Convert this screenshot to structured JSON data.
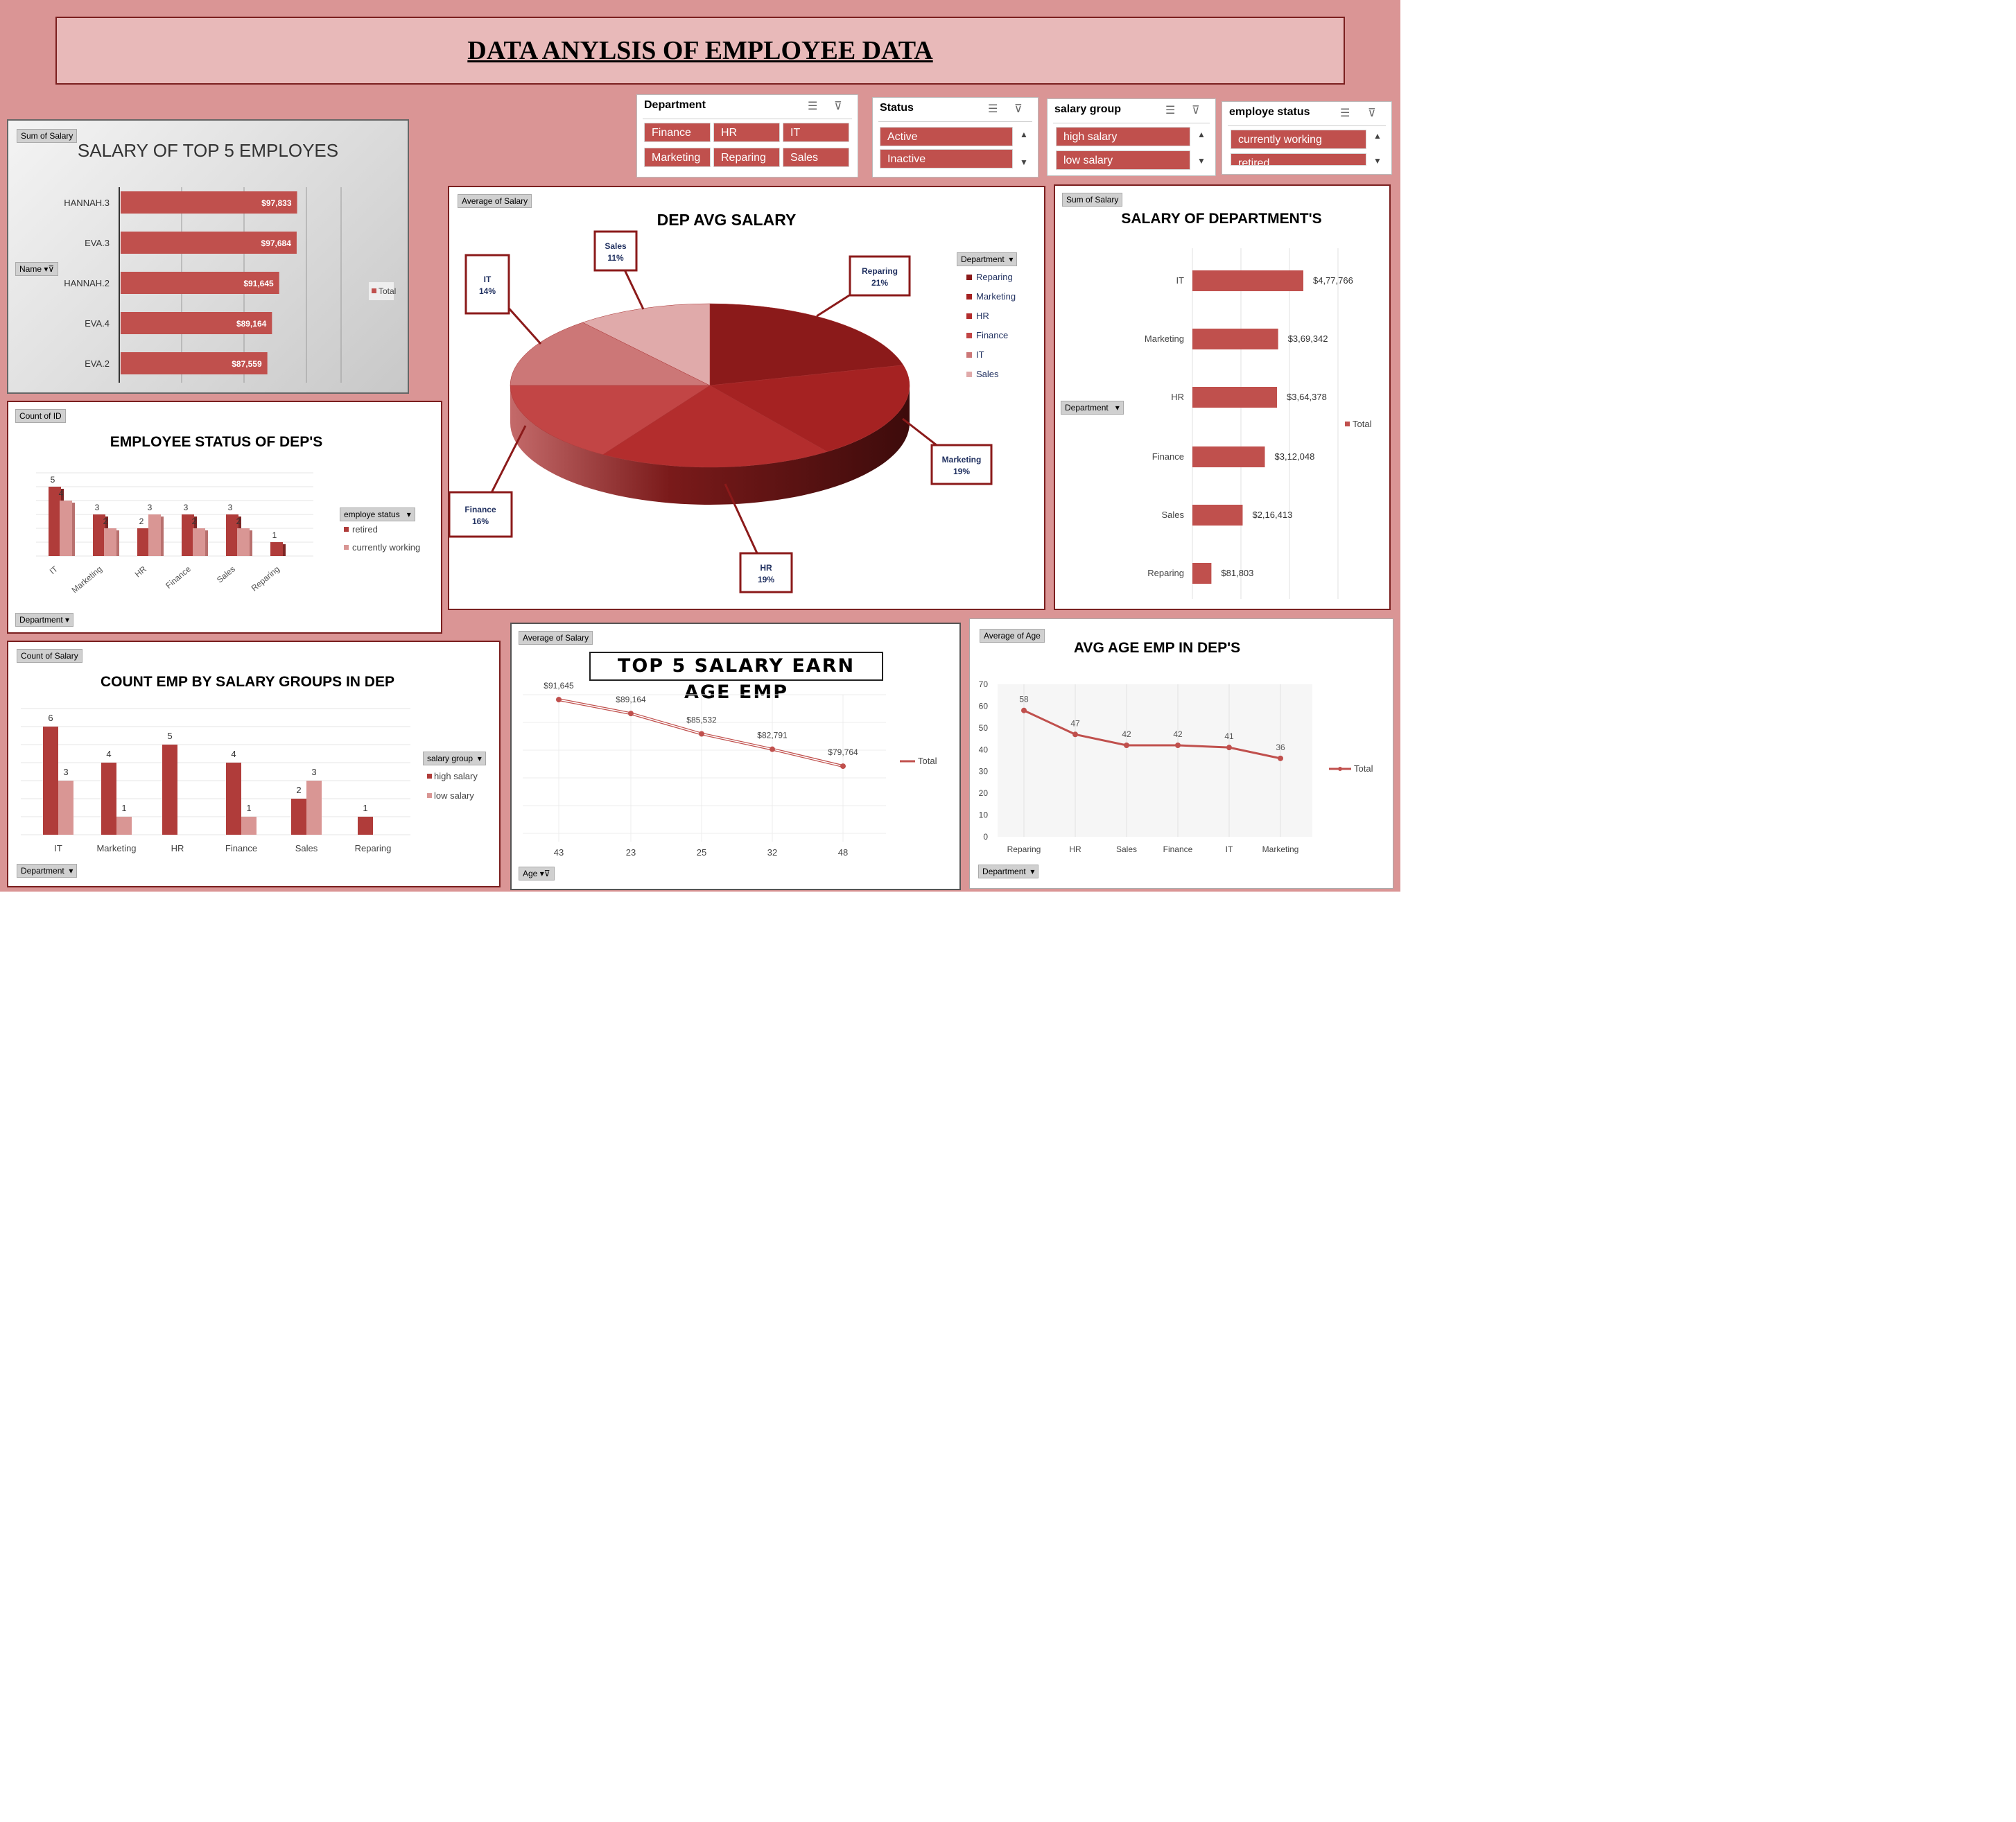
{
  "title": "DATA ANYLSIS OF EMPLOYEE DATA",
  "colors": {
    "dark": "#c0504d",
    "light": "#d99694",
    "line": "#c0504d"
  },
  "slicers": [
    {
      "header": "Department",
      "items": [
        "Finance",
        "HR",
        "IT",
        "Marketing",
        "Reparing",
        "Sales"
      ]
    },
    {
      "header": "Status",
      "items": [
        "Active",
        "Inactive"
      ]
    },
    {
      "header": "salary group",
      "items": [
        "high salary",
        "low salary"
      ]
    },
    {
      "header": "employe status",
      "items": [
        "currently working",
        "retired"
      ]
    }
  ],
  "charts": {
    "top5": {
      "field": "Sum of Salary",
      "axis_field": "Name",
      "title": "SALARY OF TOP 5 EMPLOYES",
      "legend": "Total"
    },
    "pie": {
      "field": "Average of Salary",
      "title": "DEP AVG SALARY",
      "legend_field": "Department"
    },
    "dept": {
      "field": "Sum of Salary",
      "title": "SALARY OF DEPARTMENT'S",
      "axis_field": "Department",
      "legend": "Total"
    },
    "status": {
      "field": "Count of ID",
      "title": "EMPLOYEE STATUS OF DEP'S",
      "legend_field": "employe status",
      "axis_field": "Department"
    },
    "groups": {
      "field": "Count of Salary",
      "title": "COUNT EMP BY SALARY GROUPS IN DEP",
      "legend_field": "salary group",
      "axis_field": "Department"
    },
    "age5": {
      "field": "Average of Salary",
      "title": "TOP 5 SALARY EARN AGE EMP",
      "axis_field": "Age",
      "legend": "Total"
    },
    "avgage": {
      "field": "Average of Age",
      "title": "AVG AGE EMP IN DEP'S",
      "axis_field": "Department",
      "legend": "Total"
    }
  },
  "chart_data": [
    {
      "type": "bar",
      "title": "SALARY OF TOP 5 EMPLOYES",
      "categories": [
        "HANNAH.3",
        "EVA.3",
        "HANNAH.2",
        "EVA.4",
        "EVA.2"
      ],
      "values": [
        97833,
        97684,
        91645,
        89164,
        87559
      ],
      "labels": [
        "$97,833",
        "$97,684",
        "$91,645",
        "$89,164",
        "$87,559"
      ],
      "series": [
        {
          "name": "Total"
        }
      ],
      "orientation": "horizontal"
    },
    {
      "type": "pie",
      "title": "DEP AVG SALARY",
      "categories": [
        "Reparing",
        "Marketing",
        "HR",
        "Finance",
        "IT",
        "Sales"
      ],
      "values": [
        21,
        19,
        19,
        16,
        14,
        11
      ],
      "unit": "%",
      "colors": [
        "#8b1a1a",
        "#a52222",
        "#b32d2d",
        "#c24545",
        "#cc7777",
        "#e0aaaa"
      ]
    },
    {
      "type": "bar",
      "title": "SALARY OF DEPARTMENT'S",
      "categories": [
        "IT",
        "Marketing",
        "HR",
        "Finance",
        "Sales",
        "Reparing"
      ],
      "values": [
        477766,
        369342,
        364378,
        312048,
        216413,
        81803
      ],
      "labels": [
        "$4,77,766",
        "$3,69,342",
        "$3,64,378",
        "$3,12,048",
        "$2,16,413",
        "$81,803"
      ],
      "series": [
        {
          "name": "Total"
        }
      ],
      "orientation": "horizontal",
      "grid": true
    },
    {
      "type": "bar",
      "title": "EMPLOYEE STATUS OF DEP'S",
      "categories": [
        "IT",
        "Marketing",
        "HR",
        "Finance",
        "Sales",
        "Reparing"
      ],
      "series": [
        {
          "name": "retired",
          "values": [
            5,
            3,
            2,
            3,
            3,
            1
          ]
        },
        {
          "name": "currently working",
          "values": [
            4,
            2,
            3,
            2,
            2,
            null
          ]
        }
      ]
    },
    {
      "type": "bar",
      "title": "COUNT EMP BY SALARY GROUPS IN DEP",
      "categories": [
        "IT",
        "Marketing",
        "HR",
        "Finance",
        "Sales",
        "Reparing"
      ],
      "series": [
        {
          "name": "high salary",
          "values": [
            6,
            4,
            5,
            4,
            2,
            1
          ]
        },
        {
          "name": "low salary",
          "values": [
            3,
            1,
            null,
            1,
            3,
            null
          ]
        }
      ]
    },
    {
      "type": "line",
      "title": "TOP 5 SALARY EARN AGE EMP",
      "categories": [
        "43",
        "23",
        "25",
        "32",
        "48"
      ],
      "values": [
        91645,
        89164,
        85532,
        82791,
        79764
      ],
      "labels": [
        "$91,645",
        "$89,164",
        "$85,532",
        "$82,791",
        "$79,764"
      ],
      "series": [
        {
          "name": "Total"
        }
      ]
    },
    {
      "type": "line",
      "title": "AVG AGE EMP IN DEP'S",
      "categories": [
        "Reparing",
        "HR",
        "Sales",
        "Finance",
        "IT",
        "Marketing"
      ],
      "values": [
        58,
        47,
        42,
        42,
        41,
        36
      ],
      "ylim": [
        0,
        70
      ],
      "yticks": [
        "0",
        "10",
        "20",
        "30",
        "40",
        "50",
        "60",
        "70"
      ],
      "series": [
        {
          "name": "Total"
        }
      ]
    }
  ]
}
